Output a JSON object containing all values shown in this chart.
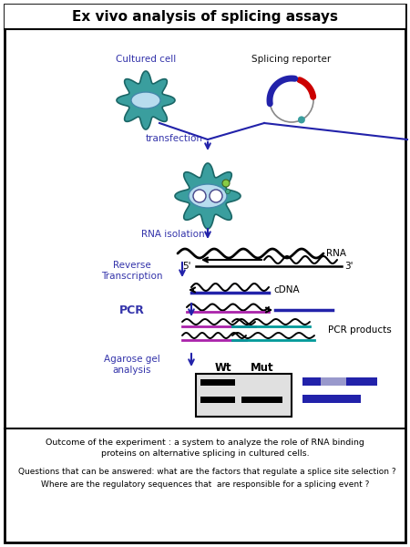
{
  "title": "Ex vivo analysis of splicing assays",
  "bg_color": "#ffffff",
  "title_fontsize": 11,
  "label_blue": "#3333aa",
  "label_black": "#111111",
  "outcome_text1": "Outcome of the experiment : a system to analyze the role of RNA binding",
  "outcome_text2": "proteins on alternative splicing in cultured cells.",
  "questions_text1": "Questions that can be answered: what are the factors that regulate a splice site selection ?",
  "questions_text2": "Where are the regulatory sequences that  are responsible for a splicing event ?",
  "teal": "#3a9e9e",
  "light_blue": "#b8dcee",
  "dark_blue": "#2222aa",
  "purple": "#aa22aa",
  "cyan_green": "#009999",
  "red": "#cc0000",
  "arrow_blue": "#2222aa"
}
